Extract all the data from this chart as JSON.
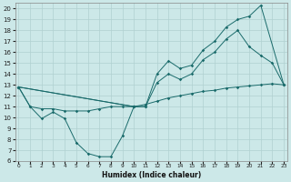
{
  "xlabel": "Humidex (Indice chaleur)",
  "bg_color": "#cce8e8",
  "line_color": "#1a6b6b",
  "xlim": [
    -0.3,
    23.3
  ],
  "ylim": [
    6,
    20.5
  ],
  "xticks": [
    0,
    1,
    2,
    3,
    4,
    5,
    6,
    7,
    8,
    9,
    10,
    11,
    12,
    13,
    14,
    15,
    16,
    17,
    18,
    19,
    20,
    21,
    22,
    23
  ],
  "yticks": [
    6,
    7,
    8,
    9,
    10,
    11,
    12,
    13,
    14,
    15,
    16,
    17,
    18,
    19,
    20
  ],
  "s1x": [
    0,
    1,
    2,
    3,
    4,
    5,
    6,
    7,
    8,
    9,
    10
  ],
  "s1y": [
    12.8,
    11.0,
    9.9,
    10.5,
    9.9,
    7.7,
    6.7,
    6.4,
    6.4,
    8.3,
    11.0
  ],
  "s2x": [
    0,
    1,
    2,
    3,
    4,
    5,
    6,
    7,
    8,
    9,
    10,
    11,
    12,
    13,
    14,
    15,
    16,
    17,
    18,
    19,
    20,
    21,
    22,
    23
  ],
  "s2y": [
    12.8,
    11.0,
    10.8,
    10.8,
    10.6,
    10.6,
    10.6,
    10.8,
    11.0,
    11.0,
    11.0,
    11.2,
    11.5,
    11.8,
    12.0,
    12.2,
    12.4,
    12.5,
    12.7,
    12.8,
    12.9,
    13.0,
    13.1,
    13.0
  ],
  "s3x": [
    0,
    10,
    11,
    12,
    13,
    14,
    15,
    16,
    17,
    18,
    19,
    20,
    21,
    23
  ],
  "s3y": [
    12.8,
    11.0,
    11.0,
    14.0,
    15.2,
    14.5,
    14.8,
    16.2,
    17.0,
    18.3,
    19.0,
    19.3,
    20.3,
    13.0
  ],
  "s4x": [
    0,
    10,
    11,
    12,
    13,
    14,
    15,
    16,
    17,
    18,
    19,
    20,
    21,
    22,
    23
  ],
  "s4y": [
    12.8,
    11.0,
    11.0,
    13.2,
    14.0,
    13.5,
    14.0,
    15.3,
    16.0,
    17.2,
    18.0,
    16.5,
    15.7,
    15.0,
    13.0
  ]
}
